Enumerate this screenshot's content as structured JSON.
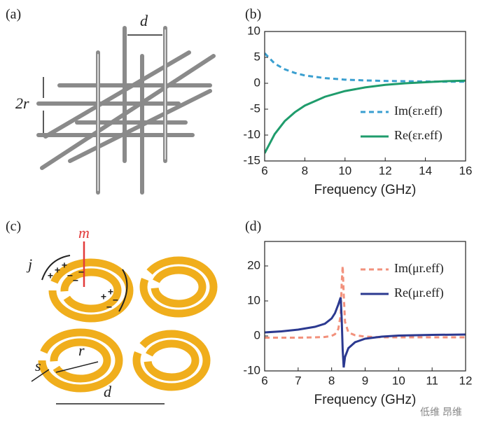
{
  "chart_data": [
    {
      "type": "line",
      "label": "(b)",
      "xlabel": "Frequency (GHz)",
      "x": [
        6,
        6.5,
        7,
        7.5,
        8,
        9,
        10,
        11,
        12,
        13,
        14,
        15,
        16
      ],
      "series": [
        {
          "name": "Im(εr.eff)",
          "color": "#3a9fd0",
          "dashed": true,
          "values": [
            5.8,
            3.8,
            2.7,
            2.0,
            1.5,
            1.0,
            0.7,
            0.55,
            0.45,
            0.4,
            0.35,
            0.3,
            0.3
          ]
        },
        {
          "name": "Re(εr.eff)",
          "color": "#1f9c6c",
          "dashed": false,
          "values": [
            -13.5,
            -9.8,
            -7.3,
            -5.6,
            -4.3,
            -2.6,
            -1.5,
            -0.8,
            -0.3,
            0,
            0.2,
            0.4,
            0.5
          ]
        }
      ],
      "xlim": [
        6,
        16
      ],
      "xticks": [
        6,
        8,
        10,
        12,
        14,
        16
      ],
      "ylim": [
        -15,
        10
      ],
      "yticks": [
        -15,
        -10,
        -5,
        0,
        5,
        10
      ],
      "grid": false,
      "legend": "lower right"
    },
    {
      "type": "line",
      "label": "(d)",
      "xlabel": "Frequency (GHz)",
      "x": [
        6,
        6.5,
        7,
        7.5,
        7.8,
        8,
        8.1,
        8.2,
        8.27,
        8.3,
        8.33,
        8.36,
        8.4,
        8.5,
        8.7,
        9,
        9.5,
        10,
        11,
        12
      ],
      "series": [
        {
          "name": "Im(μr.eff)",
          "color": "#f2917c",
          "dashed": true,
          "values": [
            -0.5,
            -0.5,
            -0.5,
            -0.4,
            -0.3,
            0,
            0.5,
            2,
            6,
            15,
            20,
            12,
            4,
            1,
            0.2,
            -0.2,
            -0.4,
            -0.4,
            -0.4,
            -0.4
          ]
        },
        {
          "name": "Re(μr.eff)",
          "color": "#2b3990",
          "dashed": false,
          "values": [
            1,
            1.3,
            1.8,
            2.6,
            3.5,
            5,
            6.5,
            9,
            11,
            5,
            -4,
            -9,
            -6,
            -3.5,
            -1.8,
            -0.8,
            -0.2,
            0.1,
            0.3,
            0.4
          ]
        }
      ],
      "xlim": [
        6,
        12
      ],
      "xticks": [
        6,
        7,
        8,
        9,
        10,
        11,
        12
      ],
      "ylim": [
        -10,
        27
      ],
      "yticks": [
        -10,
        0,
        10,
        20
      ],
      "grid": false,
      "legend": "upper right"
    }
  ],
  "diagram_a": {
    "label": "(a)",
    "spacing": "d",
    "radius": "2r"
  },
  "diagram_c": {
    "label": "(c)",
    "moment": "m",
    "current": "j",
    "gap": "s",
    "radius": "r",
    "spacing": "d",
    "charges": [
      "+",
      "+",
      "+",
      "−",
      "−",
      "−",
      "+",
      "+",
      "−",
      "−"
    ]
  },
  "watermark": "低维 昂维"
}
